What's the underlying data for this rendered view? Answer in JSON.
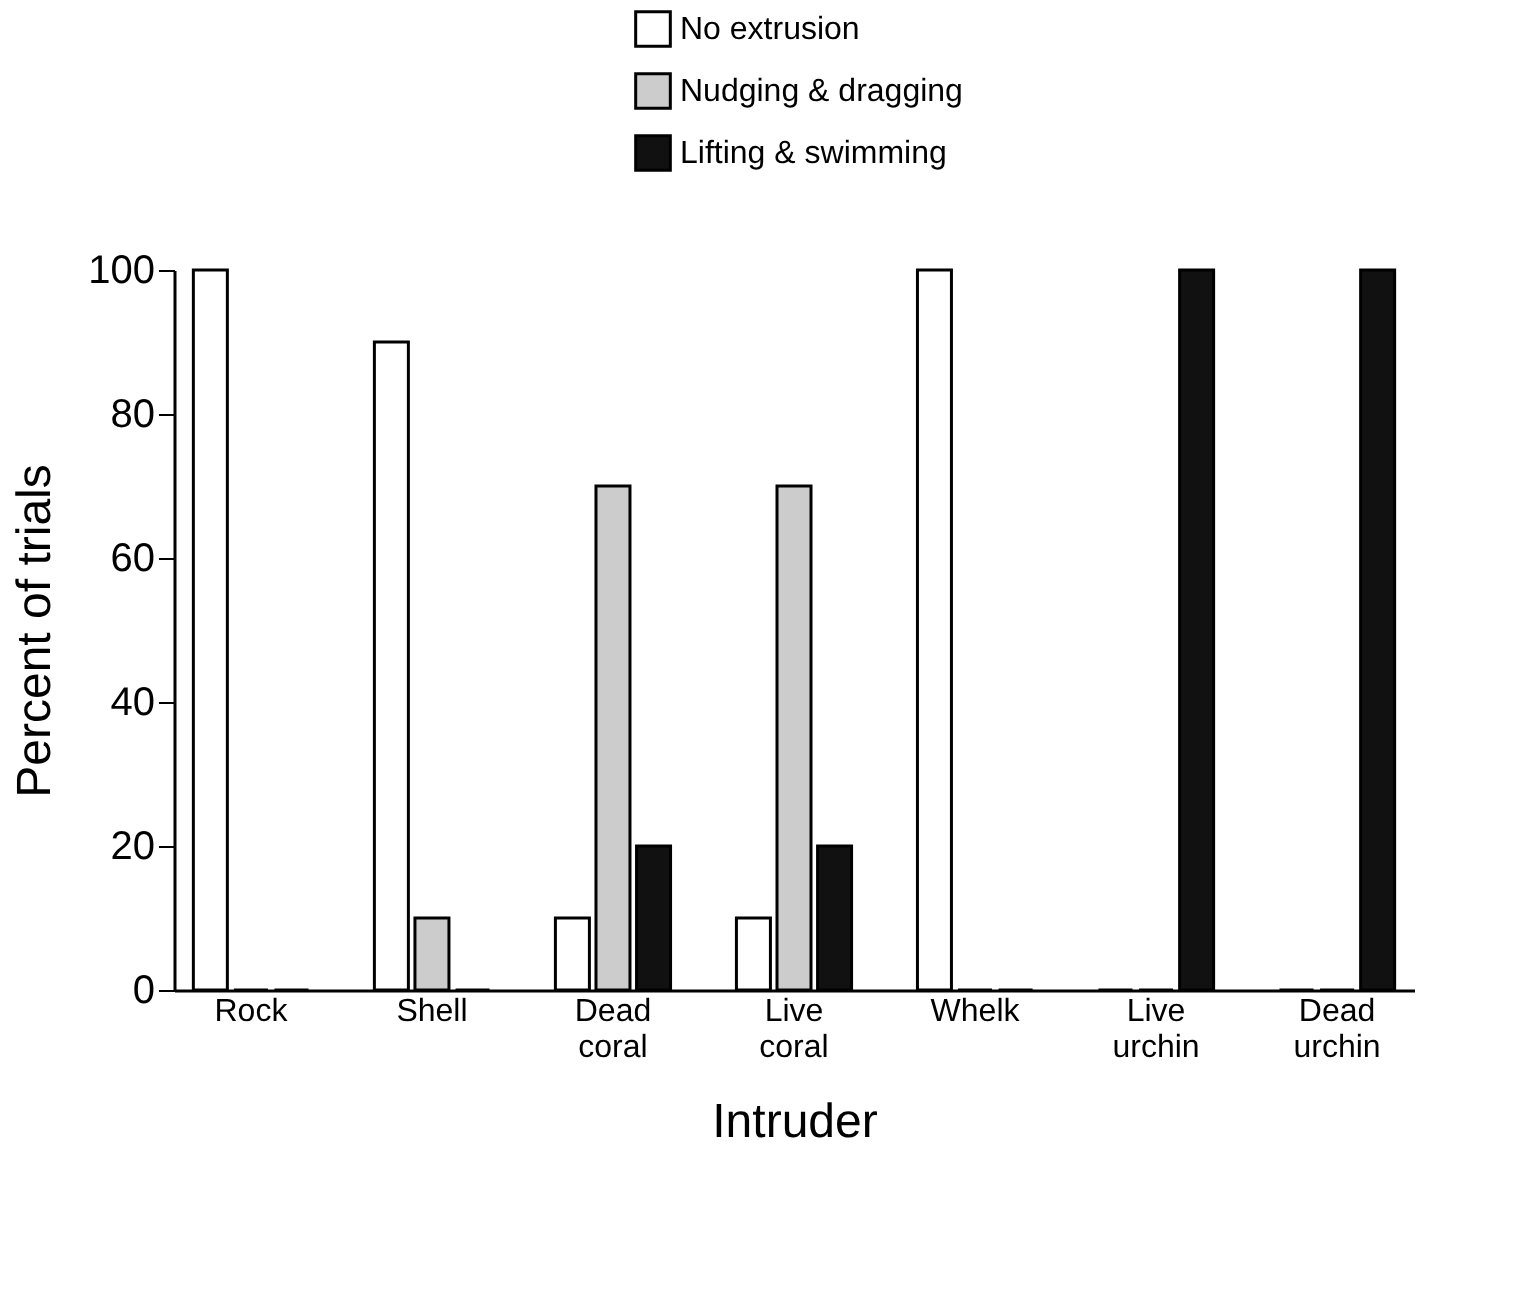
{
  "chart_data": {
    "type": "bar",
    "xlabel": "Intruder",
    "ylabel": "Percent of trials",
    "categories": [
      "Rock",
      "Shell",
      "Dead coral",
      "Live coral",
      "Whelk",
      "Live urchin",
      "Dead urchin"
    ],
    "series": [
      {
        "name": "No extrusion",
        "color": "#ffffff",
        "values": [
          100,
          90,
          10,
          10,
          100,
          0,
          0
        ]
      },
      {
        "name": "Nudging & dragging",
        "color": "#cccccc",
        "values": [
          0,
          10,
          70,
          70,
          0,
          0,
          0
        ]
      },
      {
        "name": "Lifting & swimming",
        "color": "#111111",
        "values": [
          0,
          0,
          20,
          20,
          0,
          100,
          100
        ]
      }
    ],
    "ylim": [
      0,
      100
    ],
    "yticks": [
      0,
      20,
      40,
      60,
      80,
      100
    ],
    "grid": false,
    "legend": "top"
  }
}
